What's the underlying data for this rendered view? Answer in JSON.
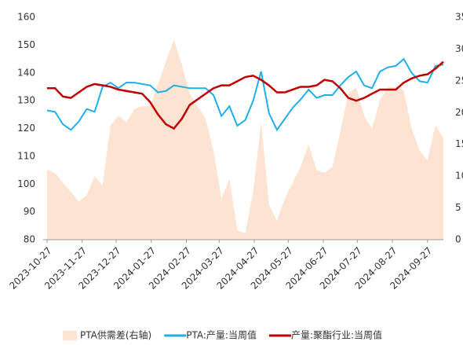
{
  "chart_data": {
    "type": "line",
    "x": [
      "2023-10-27",
      "2023-11-03",
      "2023-11-10",
      "2023-11-17",
      "2023-11-24",
      "2023-12-01",
      "2023-12-08",
      "2023-12-15",
      "2023-12-22",
      "2023-12-29",
      "2024-01-05",
      "2024-01-12",
      "2024-01-19",
      "2024-01-26",
      "2024-02-02",
      "2024-02-09",
      "2024-02-16",
      "2024-02-23",
      "2024-03-01",
      "2024-03-08",
      "2024-03-15",
      "2024-03-22",
      "2024-03-29",
      "2024-04-05",
      "2024-04-12",
      "2024-04-19",
      "2024-04-26",
      "2024-05-03",
      "2024-05-10",
      "2024-05-17",
      "2024-05-24",
      "2024-05-31",
      "2024-06-07",
      "2024-06-14",
      "2024-06-21",
      "2024-06-28",
      "2024-07-05",
      "2024-07-12",
      "2024-07-19",
      "2024-07-26",
      "2024-08-02",
      "2024-08-09",
      "2024-08-16",
      "2024-08-23",
      "2024-08-30",
      "2024-09-06",
      "2024-09-13",
      "2024-09-20",
      "2024-09-27",
      "2024-10-04",
      "2024-10-11"
    ],
    "xlim": [
      "2023-10-27",
      "2024-10-11"
    ],
    "xticks": [
      "2023-10-27",
      "2023-11-27",
      "2023-12-27",
      "2024-01-27",
      "2024-02-27",
      "2024-03-27",
      "2024-04-27",
      "2024-05-27",
      "2024-06-27",
      "2024-07-27",
      "2024-08-27",
      "2024-09-27"
    ],
    "ylim": [
      80,
      160
    ],
    "yticks": [
      80,
      90,
      100,
      110,
      120,
      130,
      140,
      150,
      160
    ],
    "y2lim": [
      0,
      35
    ],
    "y2ticks": [
      0,
      5,
      10,
      15,
      20,
      25,
      30,
      35
    ],
    "series": [
      {
        "name": "PTA供需差(右轴)",
        "type": "area",
        "axis": "y2",
        "color": "#fde3d1",
        "values": [
          11,
          10.5,
          9,
          7.5,
          6,
          7,
          10,
          8.5,
          18,
          19.5,
          18.5,
          20.5,
          21,
          21,
          24.5,
          28,
          31.5,
          27.5,
          23,
          21,
          19,
          14,
          6.5,
          9.5,
          1.5,
          1,
          7.5,
          18.5,
          5.5,
          3,
          6.5,
          9,
          11.5,
          15,
          11,
          10.5,
          11.5,
          17,
          23,
          24,
          19.5,
          17.5,
          22,
          24,
          24,
          23.5,
          17.5,
          14,
          12.5,
          18,
          16
        ]
      },
      {
        "name": "PTA:产量:当周值",
        "type": "line",
        "color": "#1fb0ea",
        "values": [
          126.5,
          126,
          121.5,
          119.5,
          122.5,
          127,
          126,
          135,
          136.5,
          134.5,
          136.5,
          136.5,
          136,
          135.5,
          133,
          133.5,
          135.5,
          135,
          134.5,
          134.5,
          134.5,
          132,
          124.5,
          128,
          121,
          123,
          130,
          140.5,
          125.5,
          119.5,
          123.5,
          127.5,
          130.5,
          134,
          131,
          132,
          132,
          135.5,
          138.5,
          140.5,
          135.5,
          134.5,
          140.5,
          142,
          142.5,
          145,
          140,
          137,
          136.5,
          142.5,
          143
        ]
      },
      {
        "name": "产量:聚酯行业:当周值",
        "type": "line",
        "color": "#c00000",
        "values": [
          134.5,
          134.5,
          131.5,
          131,
          133,
          135,
          136,
          135.5,
          135,
          134,
          133.5,
          133,
          132.5,
          129.5,
          125,
          121.5,
          120,
          123.5,
          128.5,
          130.5,
          132.5,
          134.5,
          135.5,
          135.5,
          137,
          138.5,
          139,
          137.5,
          135.5,
          133,
          133,
          134,
          135,
          135,
          135.5,
          137.5,
          137,
          134.5,
          131,
          130,
          131,
          132.5,
          134,
          134,
          134,
          136.5,
          138,
          139,
          139.5,
          141.5,
          144
        ]
      }
    ]
  }
}
